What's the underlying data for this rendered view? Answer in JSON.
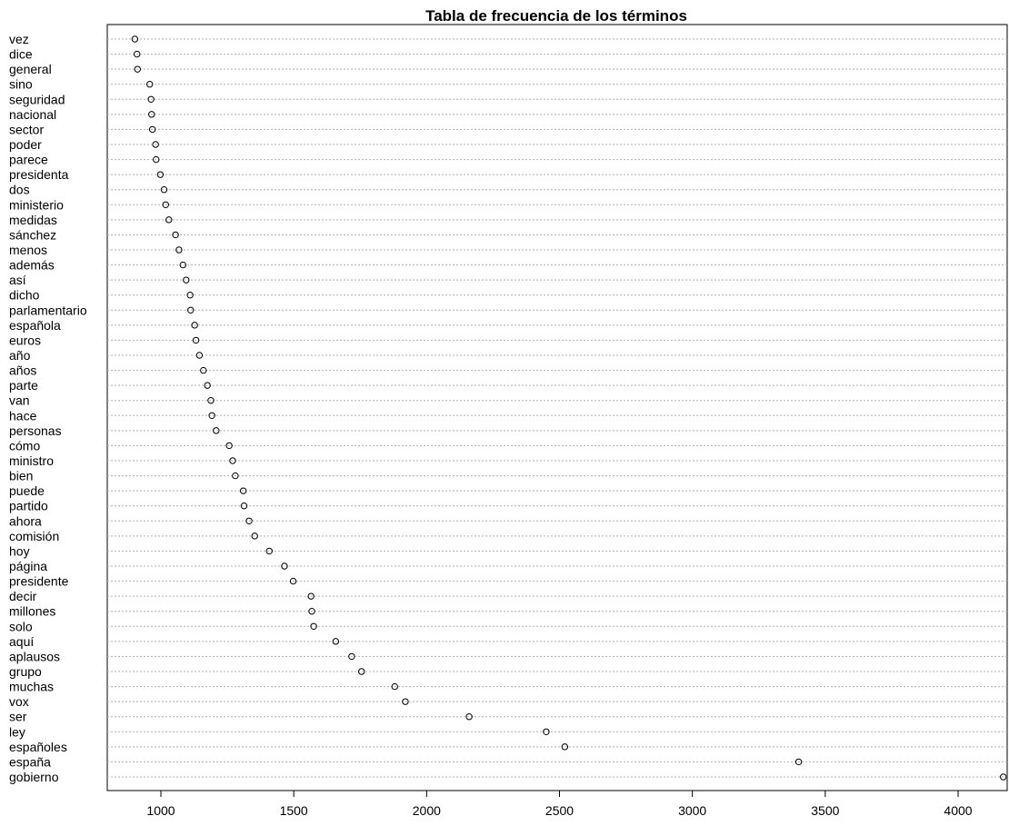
{
  "chart_data": {
    "type": "dotplot",
    "title": "Tabla de frecuencia de los términos",
    "xlabel": "",
    "ylabel": "",
    "xlim": [
      800,
      4200
    ],
    "xticks": [
      1000,
      1500,
      2000,
      2500,
      3000,
      3500,
      4000
    ],
    "grid": "horizontal dotted",
    "categories": [
      "vez",
      "dice",
      "general",
      "sino",
      "seguridad",
      "nacional",
      "sector",
      "poder",
      "parece",
      "presidenta",
      "dos",
      "ministerio",
      "medidas",
      "sánchez",
      "menos",
      "además",
      "así",
      "dicho",
      "parlamentario",
      "española",
      "euros",
      "año",
      "años",
      "parte",
      "van",
      "hace",
      "personas",
      "cómo",
      "ministro",
      "bien",
      "puede",
      "partido",
      "ahora",
      "comisión",
      "hoy",
      "página",
      "presidente",
      "decir",
      "millones",
      "solo",
      "aquí",
      "aplausos",
      "grupo",
      "muchas",
      "vox",
      "ser",
      "ley",
      "españoles",
      "españa",
      "gobierno"
    ],
    "values": [
      902,
      910,
      912,
      958,
      963,
      965,
      968,
      980,
      982,
      998,
      1012,
      1018,
      1030,
      1055,
      1068,
      1083,
      1095,
      1110,
      1112,
      1127,
      1132,
      1145,
      1160,
      1175,
      1188,
      1192,
      1208,
      1257,
      1270,
      1280,
      1310,
      1313,
      1332,
      1353,
      1408,
      1465,
      1498,
      1565,
      1568,
      1575,
      1658,
      1718,
      1755,
      1880,
      1920,
      2160,
      2450,
      2520,
      3400,
      4170
    ]
  }
}
